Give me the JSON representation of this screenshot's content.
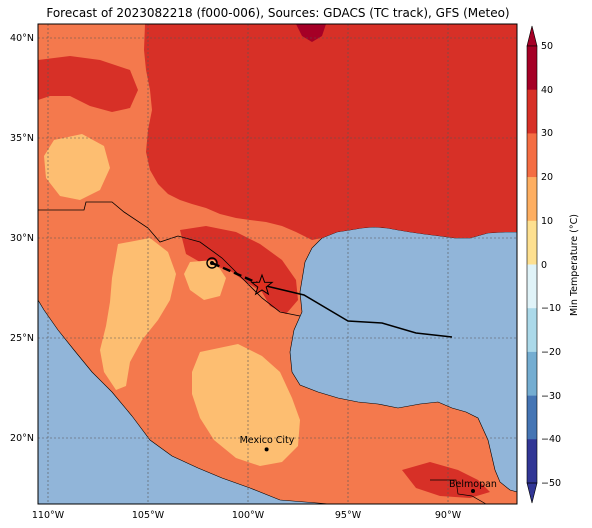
{
  "title": "Forecast of 2023082218 (f000-006), Sources: GDACS (TC track), GFS (Meteo)",
  "map": {
    "lat_ticks": [
      "40°N",
      "35°N",
      "30°N",
      "25°N",
      "20°N"
    ],
    "lon_ticks": [
      "110°W",
      "105°W",
      "100°W",
      "95°W",
      "90°W"
    ],
    "lat_values": [
      40,
      35,
      30,
      25,
      20
    ],
    "lon_values": [
      -110,
      -105,
      -100,
      -95,
      -90
    ],
    "extent": {
      "lon_min": -110.5,
      "lon_max": -86.5,
      "lat_min": 16.5,
      "lat_max": 40.8
    },
    "cities": [
      {
        "name": "Mexico City",
        "lon": -99.13,
        "lat": 19.43
      },
      {
        "name": "Belmopan",
        "lon": -88.77,
        "lat": 17.25
      }
    ],
    "track": {
      "past": [
        [
          -101.9,
          28.7
        ],
        [
          -99.3,
          27.6
        ]
      ],
      "forecast": [
        [
          -99.3,
          27.6
        ],
        [
          -97.2,
          26.7
        ],
        [
          -95.0,
          25.8
        ],
        [
          -93.3,
          25.7
        ],
        [
          -91.7,
          25.2
        ],
        [
          -90.0,
          25.0
        ]
      ],
      "current_position": [
        -99.3,
        27.6
      ],
      "past_position": [
        -101.9,
        28.7
      ]
    },
    "colors": {
      "ocean": "#91b5d9",
      "temp_20_30": "#f4794d",
      "temp_30_40": "#d73027",
      "temp_40_50": "#a50026",
      "temp_10_20": "#fdbe71"
    }
  },
  "colorbar": {
    "label": "Min Temperature (°C)",
    "ticks": [
      "50",
      "40",
      "30",
      "20",
      "10",
      "0",
      "−10",
      "−20",
      "−30",
      "−40",
      "−50"
    ],
    "colors": [
      "#a50026",
      "#d73027",
      "#f46d43",
      "#fdae61",
      "#fee090",
      "#e0f3f8",
      "#abd9e9",
      "#74add1",
      "#4575b4",
      "#313695"
    ]
  }
}
